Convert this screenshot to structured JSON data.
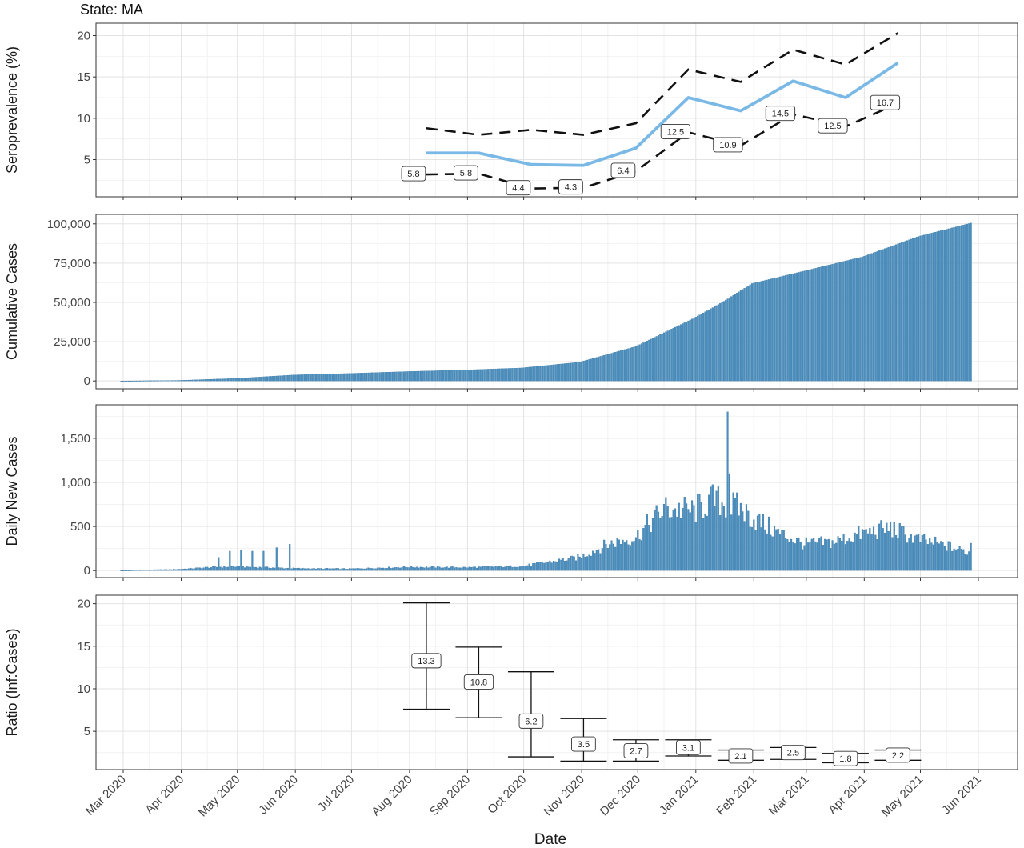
{
  "title": "State: MA",
  "x_axis": {
    "label": "Date",
    "ticks": [
      "Mar 2020",
      "Apr 2020",
      "May 2020",
      "Jun 2020",
      "Jul 2020",
      "Aug 2020",
      "Sep 2020",
      "Oct 2020",
      "Nov 2020",
      "Dec 2020",
      "Jan 2021",
      "Feb 2021",
      "Mar 2021",
      "Apr 2021",
      "May 2021",
      "Jun 2021"
    ]
  },
  "colors": {
    "line": "#7ab8e6",
    "bars": "#4a8fc0",
    "grid_major": "#e3e3e3",
    "grid_minor": "#f2f2f2",
    "panel_border": "#333333",
    "dashed": "#111111"
  },
  "chart_data": [
    {
      "type": "line",
      "ylabel": "Seroprevalence (%)",
      "ylim": [
        0.5,
        21.5
      ],
      "yticks": [
        5,
        10,
        15,
        20
      ],
      "grid": true,
      "x": [
        "2020-08-10",
        "2020-09-07",
        "2020-10-05",
        "2020-11-02",
        "2020-11-30",
        "2020-12-28",
        "2021-01-25",
        "2021-02-22",
        "2021-03-22",
        "2021-04-19"
      ],
      "series": [
        {
          "values": [
            5.8,
            5.8,
            4.4,
            4.3,
            6.4,
            12.5,
            10.9,
            14.5,
            12.5,
            16.7
          ],
          "style": "solid"
        },
        {
          "values": [
            8.8,
            8.0,
            8.6,
            8.0,
            9.4,
            15.9,
            14.4,
            18.3,
            16.5,
            20.3
          ],
          "style": "dashed"
        },
        {
          "values": [
            3.2,
            3.3,
            1.5,
            1.6,
            3.6,
            8.3,
            6.7,
            10.5,
            9.0,
            11.8
          ],
          "style": "dashed"
        }
      ],
      "data_labels": [
        "5.8",
        "5.8",
        "4.4",
        "4.3",
        "6.4",
        "12.5",
        "10.9",
        "14.5",
        "12.5",
        "16.7"
      ]
    },
    {
      "type": "bar",
      "ylabel": "Cumulative Cases",
      "ylim": [
        -5000,
        106000
      ],
      "yticks": [
        0,
        25000,
        50000,
        75000,
        100000
      ],
      "ytick_labels": [
        "0",
        "25,000",
        "50,000",
        "75,000",
        "100,000"
      ],
      "grid": true,
      "x_range": [
        "2020-02-29",
        "2021-05-28"
      ],
      "knots": [
        [
          "2020-02-29",
          0
        ],
        [
          "2020-03-31",
          350
        ],
        [
          "2020-04-30",
          1600
        ],
        [
          "2020-05-31",
          3800
        ],
        [
          "2020-06-30",
          4800
        ],
        [
          "2020-07-31",
          6000
        ],
        [
          "2020-08-31",
          7000
        ],
        [
          "2020-09-30",
          8300
        ],
        [
          "2020-10-31",
          12000
        ],
        [
          "2020-11-30",
          22000
        ],
        [
          "2020-12-31",
          40000
        ],
        [
          "2021-01-15",
          50000
        ],
        [
          "2021-01-31",
          62000
        ],
        [
          "2021-02-28",
          70000
        ],
        [
          "2021-03-31",
          79000
        ],
        [
          "2021-04-30",
          92000
        ],
        [
          "2021-05-28",
          100500
        ]
      ]
    },
    {
      "type": "bar",
      "ylabel": "Daily New Cases",
      "ylim": [
        -80,
        1880
      ],
      "yticks": [
        0,
        500,
        1000,
        1500
      ],
      "ytick_labels": [
        "0",
        "500",
        "1,000",
        "1,500"
      ],
      "grid": true,
      "x_range": [
        "2020-02-29",
        "2021-05-28"
      ],
      "knots": [
        [
          "2020-02-29",
          0
        ],
        [
          "2020-03-31",
          15
        ],
        [
          "2020-04-15",
          35
        ],
        [
          "2020-04-30",
          45
        ],
        [
          "2020-05-31",
          25
        ],
        [
          "2020-06-30",
          20
        ],
        [
          "2020-07-31",
          40
        ],
        [
          "2020-08-31",
          35
        ],
        [
          "2020-09-30",
          50
        ],
        [
          "2020-10-31",
          150
        ],
        [
          "2020-11-15",
          300
        ],
        [
          "2020-11-30",
          380
        ],
        [
          "2020-12-15",
          700
        ],
        [
          "2020-12-31",
          680
        ],
        [
          "2021-01-10",
          800
        ],
        [
          "2021-01-25",
          700
        ],
        [
          "2021-01-31",
          600
        ],
        [
          "2021-02-15",
          420
        ],
        [
          "2021-02-28",
          300
        ],
        [
          "2021-03-15",
          320
        ],
        [
          "2021-03-31",
          420
        ],
        [
          "2021-04-15",
          480
        ],
        [
          "2021-04-30",
          350
        ],
        [
          "2021-05-15",
          280
        ],
        [
          "2021-05-28",
          200
        ]
      ],
      "spikes": [
        [
          "2020-04-21",
          150
        ],
        [
          "2020-04-27",
          220
        ],
        [
          "2020-05-03",
          230
        ],
        [
          "2020-05-09",
          220
        ],
        [
          "2020-05-15",
          220
        ],
        [
          "2020-05-22",
          260
        ],
        [
          "2020-05-29",
          300
        ],
        [
          "2021-01-18",
          1800
        ],
        [
          "2021-01-19",
          1100
        ],
        [
          "2021-05-28",
          310
        ]
      ]
    },
    {
      "type": "errorbar",
      "ylabel": "Ratio (Inf:Cases)",
      "ylim": [
        0.5,
        21
      ],
      "yticks": [
        5,
        10,
        15,
        20
      ],
      "grid": true,
      "x": [
        "2020-08-10",
        "2020-09-07",
        "2020-10-05",
        "2020-11-02",
        "2020-11-30",
        "2020-12-28",
        "2021-01-25",
        "2021-02-22",
        "2021-03-22",
        "2021-04-19"
      ],
      "values": [
        13.3,
        10.8,
        6.2,
        3.5,
        2.7,
        3.1,
        2.1,
        2.5,
        1.8,
        2.2
      ],
      "lower": [
        7.6,
        6.6,
        2.0,
        1.5,
        1.5,
        2.1,
        1.6,
        1.7,
        1.3,
        1.6
      ],
      "upper": [
        20.1,
        14.9,
        12.0,
        6.5,
        4.0,
        4.0,
        2.8,
        3.1,
        2.4,
        2.8
      ],
      "data_labels": [
        "13.3",
        "10.8",
        "6.2",
        "3.5",
        "2.7",
        "3.1",
        "2.1",
        "2.5",
        "1.8",
        "2.2"
      ]
    }
  ]
}
